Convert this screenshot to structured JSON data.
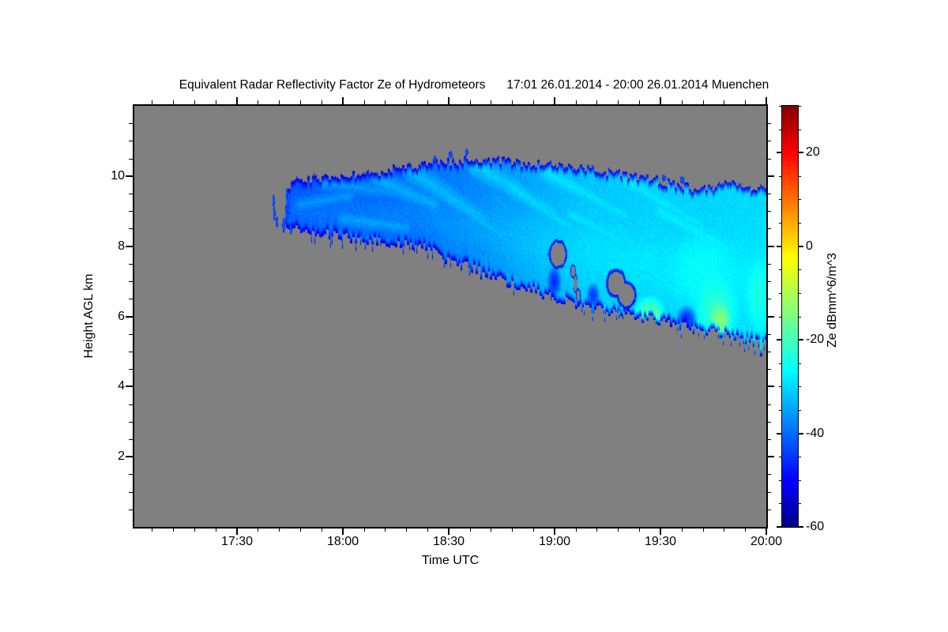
{
  "title": {
    "main": "Equivalent Radar Reflectivity Factor Ze of Hydrometeors",
    "range": "17:01 26.01.2014 - 20:00 26.01.2014 Muenchen"
  },
  "chart_data": {
    "type": "heatmap",
    "title": "Equivalent Radar Reflectivity Factor Ze of Hydrometeors",
    "time_range": "17:01 26.01.2014 - 20:00 26.01.2014",
    "site": "Muenchen",
    "x_axis": {
      "label": "Time UTC",
      "start": "17:01",
      "end": "20:00",
      "start_min": 1,
      "end_min": 180,
      "major_ticks": [
        {
          "min": 30,
          "label": "17:30"
        },
        {
          "min": 60,
          "label": "18:00"
        },
        {
          "min": 90,
          "label": "18:30"
        },
        {
          "min": 120,
          "label": "19:00"
        },
        {
          "min": 150,
          "label": "19:30"
        },
        {
          "min": 180,
          "label": "20:00"
        }
      ],
      "minor_step_min": 6
    },
    "y_axis": {
      "label": "Height AGL km",
      "min_km": 0,
      "max_km": 12,
      "major_ticks": [
        {
          "km": 2,
          "label": "2"
        },
        {
          "km": 4,
          "label": "4"
        },
        {
          "km": 6,
          "label": "6"
        },
        {
          "km": 8,
          "label": "8"
        },
        {
          "km": 10,
          "label": "10"
        }
      ],
      "minor_step_km": 0.5
    },
    "colorbar": {
      "label": "Ze dBmm^6/m^3",
      "min_dbz": -60,
      "max_dbz": 30,
      "major_ticks": [
        {
          "value": 20,
          "label": "20"
        },
        {
          "value": 0,
          "label": "0"
        },
        {
          "value": -20,
          "label": "-20"
        },
        {
          "value": -40,
          "label": "-40"
        },
        {
          "value": -60,
          "label": "-60"
        }
      ],
      "minor_step": 5
    },
    "colormap_jet_stops": [
      [
        -60,
        0,
        0,
        132
      ],
      [
        -50,
        0,
        0,
        255
      ],
      [
        -26.5,
        0,
        255,
        255
      ],
      [
        -2.5,
        255,
        255,
        0
      ],
      [
        20,
        255,
        0,
        0
      ],
      [
        30,
        127,
        0,
        0
      ]
    ],
    "plot_bg": "#808080",
    "cloud": {
      "comment_units": "t = minutes after 17:00 UTC, heights in km AGL, values in dBZe",
      "envelope": [
        [
          44,
          9.7,
          8.6
        ],
        [
          46,
          9.85,
          8.55
        ],
        [
          52,
          9.95,
          8.4
        ],
        [
          60,
          10.05,
          8.27
        ],
        [
          70,
          10.12,
          8.15
        ],
        [
          82,
          10.35,
          8.02
        ],
        [
          90,
          10.42,
          7.62
        ],
        [
          100,
          10.5,
          7.25
        ],
        [
          108,
          10.42,
          6.92
        ],
        [
          120,
          10.3,
          6.52
        ],
        [
          131,
          10.18,
          6.25
        ],
        [
          142,
          10.02,
          6.02
        ],
        [
          150,
          9.88,
          5.84
        ],
        [
          160,
          9.66,
          5.68
        ],
        [
          171,
          9.8,
          5.4
        ],
        [
          180,
          9.62,
          5.22
        ]
      ],
      "core_values_dbz": [
        [
          44,
          -41
        ],
        [
          60,
          -40
        ],
        [
          80,
          -39
        ],
        [
          100,
          -36
        ],
        [
          115,
          -33
        ],
        [
          130,
          -30.5
        ],
        [
          150,
          -29.5
        ],
        [
          180,
          -28.5
        ]
      ],
      "streaks": [
        [
          48,
          9.2,
          62,
          9.45,
          0.25,
          -36
        ],
        [
          55,
          9.8,
          75,
          9.55,
          0.3,
          -36
        ],
        [
          60,
          8.8,
          78,
          8.55,
          0.25,
          -35
        ],
        [
          58,
          8.35,
          80,
          8.05,
          0.2,
          -37
        ],
        [
          70,
          9.9,
          86,
          9.2,
          0.3,
          -34
        ],
        [
          80,
          10.1,
          100,
          8.8,
          0.35,
          -33
        ],
        [
          90,
          9.4,
          108,
          8.1,
          0.3,
          -33
        ],
        [
          98,
          10.3,
          120,
          9.0,
          0.35,
          -31
        ],
        [
          108,
          9.7,
          128,
          8.3,
          0.3,
          -30
        ],
        [
          118,
          10.1,
          140,
          8.9,
          0.35,
          -29
        ],
        [
          125,
          8.9,
          150,
          7.6,
          0.35,
          -29
        ],
        [
          132,
          7.3,
          148,
          6.6,
          0.3,
          -31
        ],
        [
          140,
          9.9,
          162,
          8.6,
          0.4,
          -28.5
        ],
        [
          150,
          9.0,
          172,
          7.8,
          0.45,
          -28
        ],
        [
          155,
          7.2,
          170,
          6.5,
          0.4,
          -27
        ]
      ],
      "green_patches": [
        [
          147,
          6.15,
          5,
          0.5,
          -19
        ],
        [
          148,
          6.0,
          2.5,
          0.3,
          -16
        ],
        [
          162,
          7.3,
          10,
          1.3,
          -26
        ],
        [
          166,
          6.1,
          7,
          1.1,
          -22
        ],
        [
          167,
          5.9,
          3.5,
          0.55,
          -14
        ],
        [
          178,
          6.6,
          4,
          1.2,
          -24
        ]
      ],
      "dark_patches": [
        [
          157.5,
          5.95,
          3.2,
          0.4,
          -45
        ],
        [
          152.6,
          5.7,
          1.0,
          0.45,
          -49
        ],
        [
          120,
          7.0,
          2.2,
          0.5,
          -46
        ],
        [
          131,
          6.6,
          2.0,
          0.4,
          -45
        ]
      ],
      "holes": [
        [
          121,
          7.78,
          2.2,
          0.33
        ],
        [
          125.3,
          7.3,
          0.6,
          0.16
        ],
        [
          126,
          6.95,
          0.5,
          0.22
        ],
        [
          126.8,
          6.6,
          0.5,
          0.18
        ],
        [
          137.5,
          6.95,
          2.2,
          0.35
        ],
        [
          140.5,
          6.62,
          2.2,
          0.33
        ]
      ],
      "specks": [
        [
          40.3,
          9.3,
          0.35,
          0.18
        ],
        [
          40.6,
          8.95,
          0.3,
          0.22
        ],
        [
          41.3,
          8.7,
          0.3,
          0.15
        ],
        [
          43.2,
          8.6,
          0.4,
          0.2
        ],
        [
          43.9,
          8.9,
          0.35,
          0.25
        ],
        [
          44.6,
          9.05,
          0.3,
          0.2
        ],
        [
          45.2,
          8.5,
          0.3,
          0.15
        ],
        [
          44.0,
          9.55,
          0.25,
          0.12
        ],
        [
          86,
          10.5,
          0.4,
          0.1
        ],
        [
          90.5,
          10.62,
          0.5,
          0.1
        ],
        [
          95,
          10.68,
          0.4,
          0.1
        ],
        [
          151,
          9.95,
          0.5,
          0.1
        ],
        [
          156,
          9.9,
          0.6,
          0.1
        ]
      ],
      "edge_value_dbz": -54,
      "edge_width_km": 0.22
    }
  }
}
